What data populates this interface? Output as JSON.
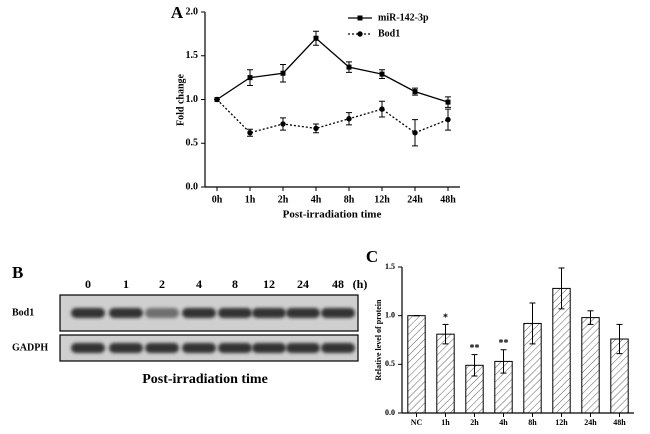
{
  "chart_data": [
    {
      "type": "line",
      "panel": "A",
      "xlabel": "Post-irradiation time",
      "ylabel": "Fold change",
      "categories": [
        "0h",
        "1h",
        "2h",
        "4h",
        "8h",
        "12h",
        "24h",
        "48h"
      ],
      "ylim": [
        0,
        2.0
      ],
      "yticks": [
        {
          "value": 0,
          "label": "0.0"
        },
        0.5,
        {
          "value": 1,
          "label": "1.0"
        },
        1.5,
        {
          "value": 2,
          "label": "2.0"
        }
      ],
      "legend": "upper right",
      "series": [
        {
          "name": "miR-142-3p",
          "color": "#000000",
          "line_style": "solid",
          "marker": "square",
          "values": [
            1.0,
            1.25,
            1.3,
            1.7,
            1.37,
            1.29,
            1.09,
            0.97
          ],
          "errors": [
            0,
            0.09,
            0.1,
            0.08,
            0.06,
            0.05,
            0.04,
            0.06
          ]
        },
        {
          "name": "Bod1",
          "color": "#000000",
          "line_style": "dotted",
          "marker": "circle",
          "values": [
            1.0,
            0.62,
            0.72,
            0.67,
            0.78,
            0.89,
            0.62,
            0.77
          ],
          "errors": [
            0,
            0.04,
            0.07,
            0.05,
            0.07,
            0.09,
            0.15,
            0.12
          ]
        }
      ]
    },
    {
      "type": "bar",
      "panel": "C",
      "ylabel": "Relative level of protein",
      "categories": [
        "NC",
        "1h",
        "2h",
        "4h",
        "8h",
        "12h",
        "24h",
        "48h"
      ],
      "ylim": [
        0,
        1.5
      ],
      "yticks": [
        {
          "value": 0,
          "label": "0.0"
        },
        0.5,
        {
          "value": 1,
          "label": "1.0"
        },
        1.5
      ],
      "color": "#000000",
      "hatch": true,
      "values": [
        1.0,
        0.81,
        0.49,
        0.53,
        0.92,
        1.28,
        0.98,
        0.76
      ],
      "errors": [
        0,
        0.1,
        0.11,
        0.12,
        0.21,
        0.21,
        0.07,
        0.15
      ],
      "significance": [
        null,
        "*",
        "**",
        "**",
        null,
        null,
        null,
        null
      ]
    }
  ],
  "blot": {
    "panel": "B",
    "lanes": [
      "0",
      "1",
      "2",
      "4",
      "8",
      "12",
      "24",
      "48"
    ],
    "unit": "(h)",
    "rows": [
      "Bod1",
      "GADPH"
    ],
    "xlabel": "Post-irradiation time"
  }
}
